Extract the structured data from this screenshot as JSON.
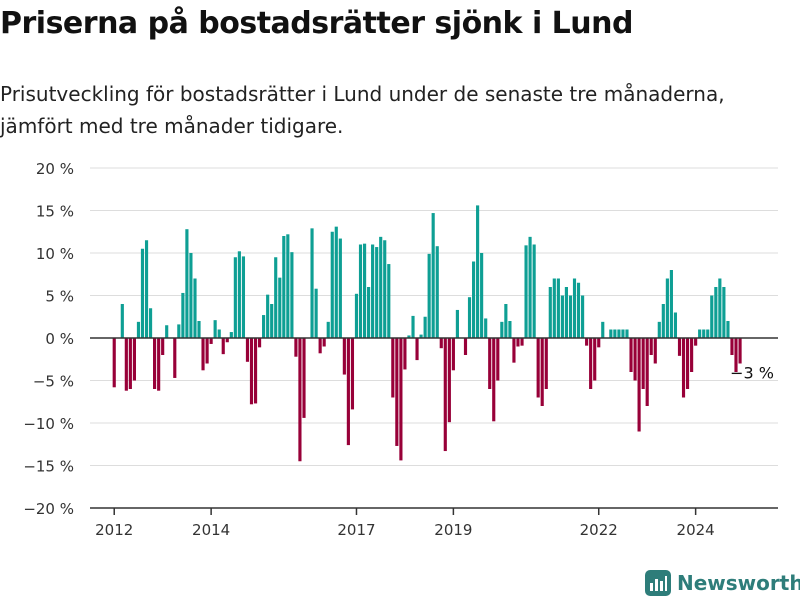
{
  "header": {
    "title": "Priserna på bostadsrätter sjönk i Lund",
    "subtitle": "Prisutveckling för bostadsrätter i Lund under de senaste tre månaderna, jämfört med tre månader tidigare."
  },
  "brand": {
    "name": "Newsworthy",
    "icon": "bar-chart-logo-icon"
  },
  "colors": {
    "positive": "#0e9f94",
    "negative": "#980038",
    "grid": "#dddddd",
    "axis": "#333333"
  },
  "chart_data": {
    "type": "bar",
    "title": "",
    "xlabel": "",
    "ylabel": "",
    "ylim": [
      -20,
      20
    ],
    "yticks": [
      20,
      15,
      10,
      5,
      0,
      -5,
      -10,
      -15,
      -20
    ],
    "ytick_labels": [
      "20 %",
      "15 %",
      "10 %",
      "5 %",
      "0 %",
      "−5 %",
      "−10 %",
      "−15 %",
      "−20 %"
    ],
    "x_range": [
      2011.5,
      2025.7
    ],
    "xticks": [
      2012,
      2014,
      2017,
      2019,
      2022,
      2024
    ],
    "xtick_labels": [
      "2012",
      "2014",
      "2017",
      "2019",
      "2022",
      "2024"
    ],
    "grid": true,
    "annotation": {
      "text": "−3 %",
      "x": 2025.0,
      "y": -3
    },
    "series": [
      {
        "x": [
          2012.0,
          2012.083,
          2012.167,
          2012.25,
          2012.333,
          2012.417,
          2012.5,
          2012.583,
          2012.667,
          2012.75,
          2012.833,
          2012.917,
          2013.0,
          2013.083,
          2013.167,
          2013.25,
          2013.333,
          2013.417,
          2013.5,
          2013.583,
          2013.667,
          2013.75,
          2013.833,
          2013.917,
          2014.0,
          2014.083,
          2014.167,
          2014.25,
          2014.333,
          2014.417,
          2014.5,
          2014.583,
          2014.667,
          2014.75,
          2014.833,
          2014.917,
          2015.0,
          2015.083,
          2015.167,
          2015.25,
          2015.333,
          2015.417,
          2015.5,
          2015.583,
          2015.667,
          2015.75,
          2015.833,
          2015.917,
          2016.0,
          2016.083,
          2016.167,
          2016.25,
          2016.333,
          2016.417,
          2016.5,
          2016.583,
          2016.667,
          2016.75,
          2016.833,
          2016.917,
          2017.0,
          2017.083,
          2017.167,
          2017.25,
          2017.333,
          2017.417,
          2017.5,
          2017.583,
          2017.667,
          2017.75,
          2017.833,
          2017.917,
          2018.0,
          2018.083,
          2018.167,
          2018.25,
          2018.333,
          2018.417,
          2018.5,
          2018.583,
          2018.667,
          2018.75,
          2018.833,
          2018.917,
          2019.0,
          2019.083,
          2019.167,
          2019.25,
          2019.333,
          2019.417,
          2019.5,
          2019.583,
          2019.667,
          2019.75,
          2019.833,
          2019.917,
          2020.0,
          2020.083,
          2020.167,
          2020.25,
          2020.333,
          2020.417,
          2020.5,
          2020.583,
          2020.667,
          2020.75,
          2020.833,
          2020.917,
          2021.0,
          2021.083,
          2021.167,
          2021.25,
          2021.333,
          2021.417,
          2021.5,
          2021.583,
          2021.667,
          2021.75,
          2021.833,
          2021.917,
          2022.0,
          2022.083,
          2022.167,
          2022.25,
          2022.333,
          2022.417,
          2022.5,
          2022.583,
          2022.667,
          2022.75,
          2022.833,
          2022.917,
          2023.0,
          2023.083,
          2023.167,
          2023.25,
          2023.333,
          2023.417,
          2023.5,
          2023.583,
          2023.667,
          2023.75,
          2023.833,
          2023.917,
          2024.0,
          2024.083,
          2024.167,
          2024.25,
          2024.333,
          2024.417,
          2024.5,
          2024.583,
          2024.667,
          2024.75,
          2024.833,
          2024.917
        ],
        "values": [
          -5.8,
          0,
          4.0,
          -6.2,
          -6.0,
          -5.0,
          1.9,
          10.5,
          11.5,
          3.5,
          -6.0,
          -6.2,
          -2.0,
          1.5,
          0,
          -4.7,
          1.6,
          5.3,
          12.8,
          10.0,
          7.0,
          2.0,
          -3.8,
          -3.0,
          -0.7,
          2.1,
          1.0,
          -1.9,
          -0.5,
          0.7,
          9.5,
          10.2,
          9.6,
          -2.8,
          -7.8,
          -7.7,
          -1.1,
          2.7,
          5.1,
          4.0,
          9.5,
          7.1,
          12.0,
          12.2,
          10.1,
          -2.2,
          -14.5,
          -9.4,
          0,
          12.9,
          5.8,
          -1.8,
          -1.0,
          1.9,
          12.5,
          13.1,
          11.7,
          -4.3,
          -12.6,
          -8.4,
          5.2,
          11.0,
          11.1,
          6.0,
          11.0,
          10.7,
          11.9,
          11.5,
          8.7,
          -7.0,
          -12.7,
          -14.4,
          -3.7,
          0.3,
          2.6,
          -2.6,
          0.4,
          2.5,
          9.9,
          14.7,
          10.8,
          -1.2,
          -13.3,
          -9.9,
          -3.8,
          3.3,
          0,
          -2.0,
          4.8,
          9.0,
          15.6,
          10.0,
          2.3,
          -6.0,
          -9.8,
          -5.0,
          1.9,
          4.0,
          2.0,
          -2.9,
          -1.0,
          -0.9,
          10.9,
          11.9,
          11.0,
          -7.0,
          -8.0,
          -6.0,
          6.0,
          7.0,
          7.0,
          5.0,
          6.0,
          5.0,
          7.0,
          6.5,
          5.0,
          -0.9,
          -6.0,
          -5.0,
          -1.1,
          1.9,
          0,
          1.0,
          1.0,
          1.0,
          1.0,
          1.0,
          -4.0,
          -5.0,
          -11.0,
          -6.0,
          -8.0,
          -2.0,
          -3.0,
          1.9,
          4.0,
          7.0,
          8.0,
          3.0,
          -2.1,
          -7.0,
          -6.0,
          -4.0,
          -0.9,
          1.0,
          1.0,
          1.0,
          5.0,
          6.0,
          7.0,
          6.0,
          2.0,
          -2.0,
          -4.0,
          -3.0
        ]
      }
    ]
  }
}
